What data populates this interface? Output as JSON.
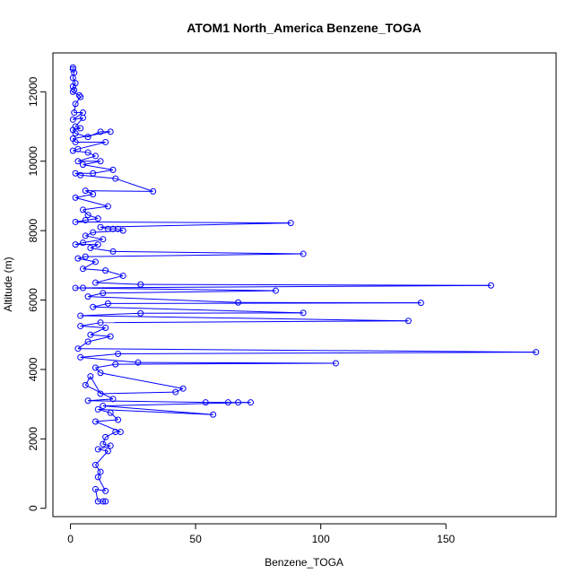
{
  "chart_data": {
    "type": "line",
    "title": "ATOM1 North_America Benzene_TOGA",
    "xlabel": "Benzene_TOGA",
    "ylabel": "Altitude (m)",
    "xlim": [
      -7,
      194
    ],
    "ylim": [
      -240,
      13120
    ],
    "x_ticks": [
      0,
      50,
      100,
      150
    ],
    "y_ticks": [
      0,
      2000,
      4000,
      6000,
      8000,
      10000,
      12000
    ],
    "grid": false,
    "marker": "open-circle",
    "color": "#0000ff",
    "series": [
      {
        "name": "",
        "points": [
          [
            1,
            12700
          ],
          [
            1,
            12650
          ],
          [
            1.5,
            12550
          ],
          [
            1,
            12400
          ],
          [
            2,
            12250
          ],
          [
            1,
            12150
          ],
          [
            1.5,
            12050
          ],
          [
            1,
            12000
          ],
          [
            3.5,
            11900
          ],
          [
            4,
            11850
          ],
          [
            2,
            11650
          ],
          [
            1.5,
            11400
          ],
          [
            5,
            11400
          ],
          [
            1,
            11200
          ],
          [
            5,
            11250
          ],
          [
            2,
            11000
          ],
          [
            4,
            10950
          ],
          [
            1,
            10900
          ],
          [
            2,
            10800
          ],
          [
            7,
            10700
          ],
          [
            12,
            10850
          ],
          [
            16,
            10850
          ],
          [
            1,
            10650
          ],
          [
            2,
            10550
          ],
          [
            14,
            10550
          ],
          [
            3,
            10350
          ],
          [
            1,
            10300
          ],
          [
            7,
            10250
          ],
          [
            10,
            10150
          ],
          [
            3,
            10000
          ],
          [
            12,
            10000
          ],
          [
            5,
            9900
          ],
          [
            17,
            9750
          ],
          [
            9,
            9650
          ],
          [
            2,
            9650
          ],
          [
            4,
            9600
          ],
          [
            18,
            9500
          ],
          [
            33,
            9130
          ],
          [
            6,
            9150
          ],
          [
            9,
            9050
          ],
          [
            2,
            8950
          ],
          [
            15,
            8700
          ],
          [
            5,
            8600
          ],
          [
            7,
            8450
          ],
          [
            11,
            8350
          ],
          [
            6,
            8300
          ],
          [
            2,
            8250
          ],
          [
            88,
            8220
          ],
          [
            12,
            8100
          ],
          [
            15,
            8050
          ],
          [
            17,
            8050
          ],
          [
            19,
            8050
          ],
          [
            21,
            8000
          ],
          [
            9,
            7950
          ],
          [
            6,
            7850
          ],
          [
            13,
            7750
          ],
          [
            5,
            7650
          ],
          [
            2,
            7600
          ],
          [
            11,
            7600
          ],
          [
            8,
            7500
          ],
          [
            17,
            7400
          ],
          [
            93,
            7330
          ],
          [
            6,
            7250
          ],
          [
            3,
            7200
          ],
          [
            10,
            7100
          ],
          [
            5,
            6900
          ],
          [
            14,
            6850
          ],
          [
            21,
            6700
          ],
          [
            10,
            6500
          ],
          [
            28,
            6450
          ],
          [
            168,
            6420
          ],
          [
            5,
            6350
          ],
          [
            2,
            6350
          ],
          [
            82,
            6270
          ],
          [
            13,
            6200
          ],
          [
            7,
            6100
          ],
          [
            67,
            5930
          ],
          [
            140,
            5920
          ],
          [
            15,
            5900
          ],
          [
            9,
            5800
          ],
          [
            93,
            5630
          ],
          [
            28,
            5620
          ],
          [
            4,
            5550
          ],
          [
            135,
            5400
          ],
          [
            12,
            5350
          ],
          [
            4,
            5250
          ],
          [
            14,
            5200
          ],
          [
            8,
            5000
          ],
          [
            16,
            4950
          ],
          [
            7,
            4800
          ],
          [
            3,
            4600
          ],
          [
            186,
            4500
          ],
          [
            19,
            4450
          ],
          [
            4,
            4350
          ],
          [
            27,
            4200
          ],
          [
            106,
            4180
          ],
          [
            18,
            4150
          ],
          [
            10,
            4050
          ],
          [
            12,
            3900
          ],
          [
            45,
            3450
          ],
          [
            42,
            3350
          ],
          [
            12,
            3300
          ],
          [
            8,
            3800
          ],
          [
            6,
            3550
          ],
          [
            17,
            3150
          ],
          [
            7,
            3100
          ],
          [
            54,
            3050
          ],
          [
            63,
            3050
          ],
          [
            67,
            3050
          ],
          [
            72,
            3050
          ],
          [
            13,
            2950
          ],
          [
            57,
            2700
          ],
          [
            11,
            2850
          ],
          [
            16,
            2750
          ],
          [
            19,
            2550
          ],
          [
            10,
            2500
          ],
          [
            20,
            2200
          ],
          [
            18,
            2200
          ],
          [
            14,
            2050
          ],
          [
            13,
            1850
          ],
          [
            16,
            1800
          ],
          [
            11,
            1700
          ],
          [
            15,
            1650
          ],
          [
            10,
            1250
          ],
          [
            12,
            1050
          ],
          [
            11,
            900
          ],
          [
            14,
            500
          ],
          [
            10,
            550
          ],
          [
            11,
            200
          ],
          [
            13,
            200
          ],
          [
            14,
            200
          ]
        ]
      }
    ]
  }
}
